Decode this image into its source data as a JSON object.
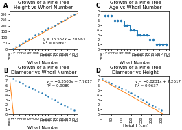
{
  "chart_data": [
    {
      "type": "scatter",
      "panel_label": "A",
      "title": "Growth of a Pine Tree\nHeight vs Whorl Number",
      "x_label": "Whorl Number",
      "annotations": [
        "y = 15.552x − 20.963\nR² = 0.9997"
      ],
      "x": [
        1,
        2,
        3,
        4,
        5,
        6,
        7,
        8,
        9,
        10,
        11,
        12,
        13,
        14,
        15,
        16,
        17,
        18,
        19,
        20
      ],
      "series": [
        {
          "type": "line",
          "line_style": "solid",
          "color": "#ff7f0e",
          "x": [
            1.35,
            21
          ],
          "values": [
            0.0322,
            305.629
          ]
        },
        {
          "type": "scatter",
          "marker": "o",
          "color": "#1f77b4",
          "values": [
            5,
            20,
            35,
            50,
            70,
            87,
            100,
            120,
            135,
            150,
            165,
            182,
            196,
            208,
            225,
            240,
            255,
            270,
            287,
            300
          ]
        }
      ],
      "xlim": [
        0,
        21
      ],
      "xticks": [
        {
          "value": 0,
          "label": "Base"
        },
        1,
        2,
        3,
        4,
        5,
        6,
        7,
        8,
        9,
        10,
        11,
        12,
        13,
        14,
        15,
        16,
        17,
        18,
        19,
        20,
        {
          "value": 21,
          "label": "Top"
        }
      ],
      "ylim": [
        0,
        330
      ],
      "yticks": [
        0,
        50,
        100,
        150,
        200,
        250,
        300
      ]
    },
    {
      "type": "line",
      "panel_label": "C",
      "title": "Growth of a Pine Tree\nAge vs Whorl Number",
      "x_label": "Whorl Number",
      "x": [
        1,
        2,
        3,
        4,
        5,
        6,
        7,
        8,
        9,
        10,
        11,
        12,
        13,
        14,
        15,
        16,
        17,
        18,
        19,
        20
      ],
      "series": [
        {
          "type": "line",
          "line_style": "steps",
          "marker": "o",
          "color": "#1f77b4",
          "values": [
            7,
            7,
            7,
            6,
            6,
            6,
            5,
            5,
            4,
            4,
            3,
            3,
            3,
            3,
            2,
            2,
            1,
            1,
            1,
            1
          ]
        }
      ],
      "xlim": [
        0,
        21
      ],
      "xticks": [
        {
          "value": 0,
          "label": "Base"
        },
        1,
        2,
        3,
        4,
        5,
        6,
        7,
        8,
        9,
        10,
        11,
        12,
        13,
        14,
        15,
        16,
        17,
        18,
        19,
        20,
        {
          "value": 21,
          "label": "Top"
        }
      ],
      "ylim": [
        0,
        8
      ],
      "yticks": [
        0,
        1,
        2,
        3,
        4,
        5,
        6,
        7,
        8
      ]
    },
    {
      "type": "scatter",
      "panel_label": "B",
      "title": "Growth of a Pine Tree\nDiameter vs Whorl Number",
      "x_label": "Whorl Number",
      "annotations": [
        "y = −6.3508x + 7.7617\nR² = 0.9089"
      ],
      "x": [
        1,
        2,
        3,
        4,
        5,
        6,
        7,
        8,
        9,
        10,
        11,
        12,
        13,
        14,
        15,
        16,
        17,
        18,
        19,
        20
      ],
      "series": [
        {
          "type": "line",
          "line_style": "solid",
          "color": "#ff7f0e",
          "x": [
            0,
            1.22
          ],
          "values": [
            7.7617,
            0.013724
          ]
        },
        {
          "type": "scatter",
          "marker": "o",
          "color": "#1f77b4",
          "values": [
            7.4,
            7.0,
            6.7,
            6.5,
            6.1,
            5.8,
            5.5,
            5.2,
            4.8,
            4.5,
            4.1,
            3.7,
            3.3,
            3.0,
            2.6,
            2.2,
            1.9,
            1.6,
            1.2,
            0.9
          ]
        }
      ],
      "xlim": [
        0,
        21
      ],
      "xticks": [
        {
          "value": 0,
          "label": "Base"
        },
        1,
        2,
        3,
        4,
        5,
        6,
        7,
        8,
        9,
        10,
        11,
        12,
        13,
        14,
        15,
        16,
        17,
        18,
        19,
        20,
        {
          "value": 21,
          "label": "Top"
        }
      ],
      "ylim": [
        0,
        8
      ],
      "yticks": [
        0,
        1,
        2,
        3,
        4,
        5,
        6,
        7,
        8
      ]
    },
    {
      "type": "scatter",
      "panel_label": "D",
      "title": "Growth of a Pine Tree\nDiameter vs Height",
      "x_label": "Height (cm)",
      "annotations": [
        "y = −0.0231x + 7.2617\nR² = 0.9637"
      ],
      "x": [
        5,
        20,
        35,
        50,
        70,
        87,
        100,
        120,
        135,
        150,
        165,
        182,
        196,
        208,
        225,
        240,
        255,
        270,
        287,
        300
      ],
      "series": [
        {
          "type": "line",
          "line_style": "solid",
          "color": "#ff7f0e",
          "x": [
            0,
            314
          ],
          "values": [
            7.2617,
            0.0083
          ]
        },
        {
          "type": "scatter",
          "marker": "o",
          "color": "#1f77b4",
          "values": [
            7.4,
            7.0,
            6.7,
            6.5,
            6.1,
            5.8,
            5.5,
            5.2,
            4.8,
            4.5,
            4.1,
            3.7,
            3.3,
            3.0,
            2.6,
            2.2,
            1.9,
            1.6,
            1.2,
            0.9
          ]
        }
      ],
      "xlim": [
        0,
        340
      ],
      "xticks": [
        0,
        50,
        100,
        150,
        200,
        250,
        300
      ],
      "ylim": [
        0,
        8
      ],
      "yticks": [
        0,
        1,
        2,
        3,
        4,
        5,
        6,
        7,
        8
      ]
    }
  ]
}
